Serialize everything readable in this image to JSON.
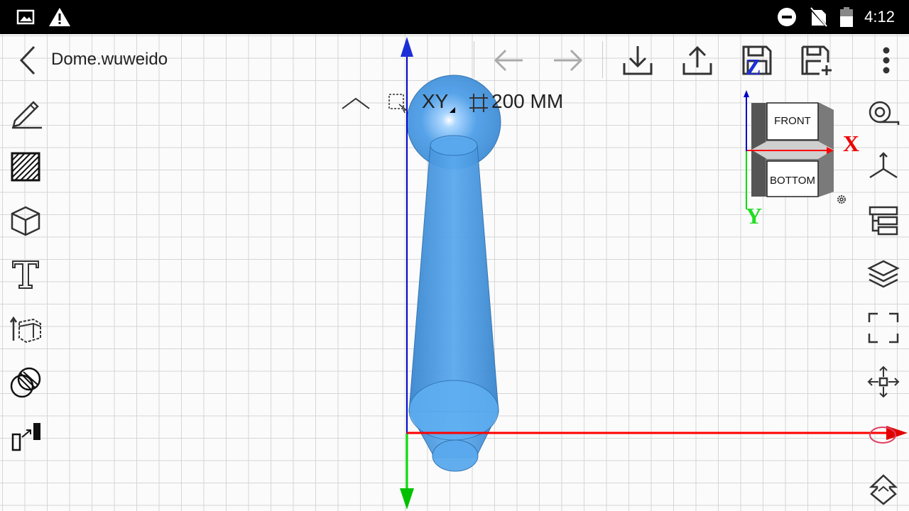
{
  "status_bar": {
    "time": "4:12",
    "left_icons": [
      "image-icon",
      "warning-icon"
    ],
    "right_icons": [
      "do-not-disturb-icon",
      "no-sim-icon",
      "battery-icon"
    ]
  },
  "app_bar": {
    "file_name": "Dome.wuweido",
    "actions": [
      "undo",
      "redo",
      "import",
      "export",
      "save",
      "save-as",
      "more"
    ]
  },
  "view_bar": {
    "plane": "XY",
    "grid_size": "200 MM"
  },
  "view_cube": {
    "front_label": "FRONT",
    "bottom_label": "BOTTOM",
    "axis_x": "X",
    "axis_y": "Y",
    "axis_z": "Z"
  },
  "left_toolbar": [
    "sketch",
    "hatch",
    "primitives",
    "text",
    "extrude",
    "boolean",
    "transform"
  ],
  "right_toolbar": [
    "measure",
    "axis-view",
    "tree",
    "layers",
    "fit-view",
    "move",
    "snap"
  ],
  "colors": {
    "x_axis": "#ff0000",
    "y_axis": "#00dd00",
    "z_axis": "#0000cc",
    "model": "#4a9be6"
  }
}
